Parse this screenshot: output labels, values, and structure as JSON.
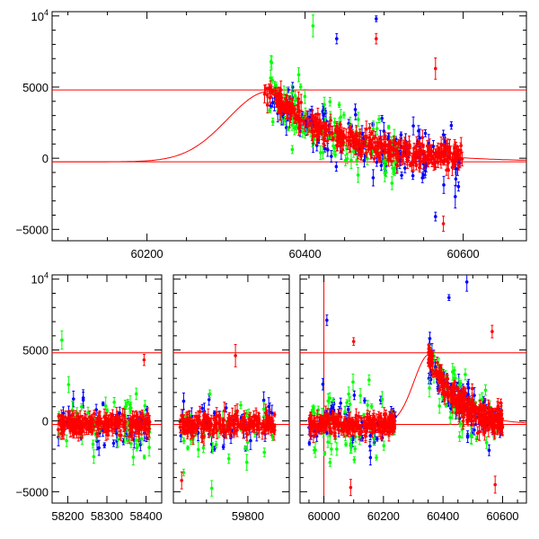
{
  "chart_data": [
    {
      "type": "scatter",
      "panel": "top",
      "xlim": [
        60080,
        60680
      ],
      "ylim": [
        -5800,
        10300
      ],
      "x_ticks": [
        60200,
        60400,
        60600
      ],
      "x_tick_labels": [
        "60200",
        "60400",
        "60600"
      ],
      "y_ticks": [
        -5000,
        0,
        5000,
        10000
      ],
      "y_tick_labels": [
        "−5000",
        "0",
        "5000",
        "10⁴"
      ],
      "hlines": [
        4800,
        -250
      ],
      "model_curve": {
        "baseline": -250,
        "peak": 4700,
        "t_peak": 60355,
        "rise_scale": 75,
        "decay_scale": 85,
        "color": "#ff0000"
      },
      "grid": false,
      "series": [
        {
          "color_name": "red",
          "color": "#ff0000",
          "x_range": [
            60348,
            60600
          ]
        },
        {
          "color_name": "green",
          "color": "#00ff00",
          "x_range": [
            60355,
            60520
          ]
        },
        {
          "color_name": "blue",
          "color": "#0000ff",
          "x_range": [
            60355,
            60600
          ]
        }
      ],
      "outliers": [
        {
          "x": 60490,
          "y": 9800,
          "color": "#0000ff"
        },
        {
          "x": 60440,
          "y": 8400,
          "color": "#0000ff"
        },
        {
          "x": 60490,
          "y": 8400,
          "color": "#ff0000"
        },
        {
          "x": 60565,
          "y": 6300,
          "color": "#ff0000"
        },
        {
          "x": 60575,
          "y": -4600,
          "color": "#ff0000"
        },
        {
          "x": 60565,
          "y": -4100,
          "color": "#0000ff"
        },
        {
          "x": 60590,
          "y": -2700,
          "color": "#0000ff"
        },
        {
          "x": 60585,
          "y": 2300,
          "color": "#0000ff"
        },
        {
          "x": 60410,
          "y": 9300,
          "color": "#00ff00"
        }
      ]
    },
    {
      "type": "scatter",
      "panel": "bottom",
      "broken_axis": true,
      "segments": [
        {
          "xlim": [
            58160,
            58440
          ],
          "x_ticks": [
            58200,
            58300,
            58400
          ],
          "x_tick_labels": [
            "58200",
            "58300",
            "58400"
          ],
          "data_range": [
            58175,
            58410
          ]
        },
        {
          "xlim": [
            59620,
            59900
          ],
          "x_ticks": [
            59800
          ],
          "x_tick_labels": [
            "59800"
          ],
          "data_range": [
            59635,
            59865
          ]
        },
        {
          "xlim": [
            59920,
            60680
          ],
          "x_ticks": [
            60000,
            60200,
            60400,
            60600
          ],
          "x_tick_labels": [
            "60000",
            "60200",
            "60400",
            "60600"
          ],
          "data_range": [
            59950,
            60600
          ]
        }
      ],
      "ylim": [
        -5800,
        10300
      ],
      "y_ticks": [
        -5000,
        0,
        5000,
        10000
      ],
      "y_tick_labels": [
        "−5000",
        "0",
        "5000",
        "10⁴"
      ],
      "hlines": [
        4800,
        -250
      ],
      "vline_x": 60000,
      "grid": false,
      "series": [
        {
          "color_name": "red",
          "color": "#ff0000"
        },
        {
          "color_name": "green",
          "color": "#00ff00"
        },
        {
          "color_name": "blue",
          "color": "#0000ff"
        }
      ],
      "outliers": [
        {
          "seg": 2,
          "x": 60010,
          "y": 7100,
          "color": "#0000ff"
        },
        {
          "seg": 2,
          "x": 60100,
          "y": 5600,
          "color": "#ff0000"
        },
        {
          "seg": 2,
          "x": 60090,
          "y": -4700,
          "color": "#ff0000"
        },
        {
          "seg": 2,
          "x": 60420,
          "y": 8700,
          "color": "#0000ff"
        },
        {
          "seg": 2,
          "x": 60480,
          "y": 9800,
          "color": "#0000ff"
        },
        {
          "seg": 2,
          "x": 60565,
          "y": 6300,
          "color": "#ff0000"
        },
        {
          "seg": 2,
          "x": 60575,
          "y": -4500,
          "color": "#ff0000"
        },
        {
          "seg": 0,
          "x": 58185,
          "y": 5700,
          "color": "#00ff00"
        },
        {
          "seg": 0,
          "x": 58395,
          "y": 4300,
          "color": "#ff0000"
        },
        {
          "seg": 1,
          "x": 59770,
          "y": 4600,
          "color": "#ff0000"
        },
        {
          "seg": 1,
          "x": 59640,
          "y": -4200,
          "color": "#ff0000"
        }
      ]
    }
  ]
}
